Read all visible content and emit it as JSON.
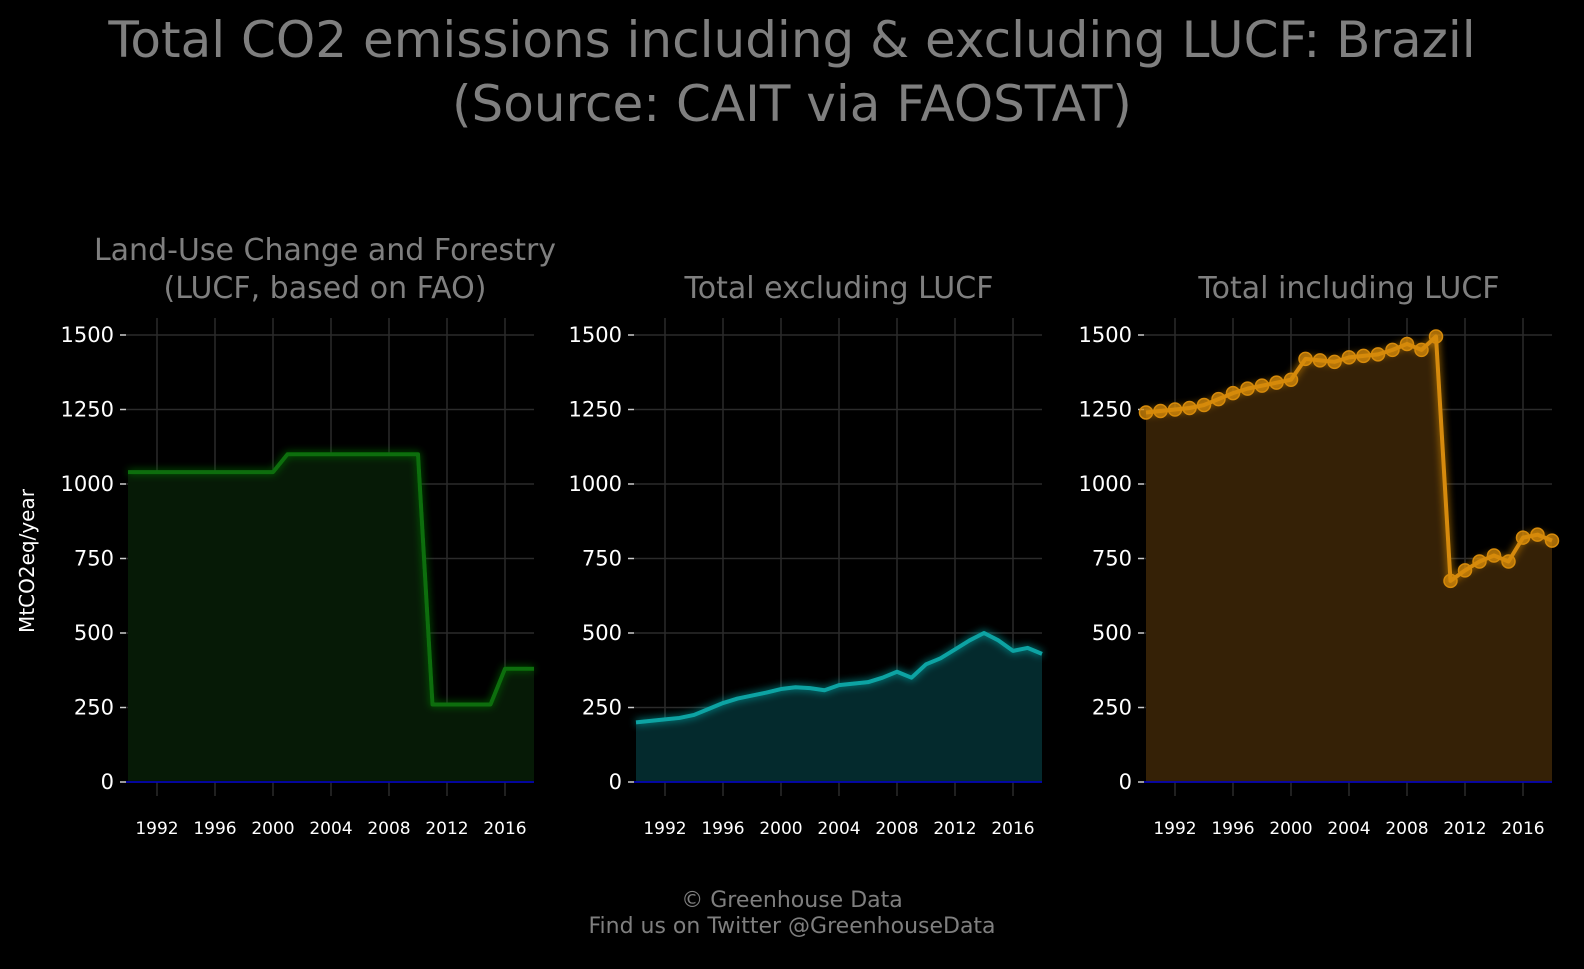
{
  "title": {
    "line1": "Total CO2 emissions including & excluding LUCF: Brazil",
    "line2": "(Source: CAIT via FAOSTAT)"
  },
  "credit": {
    "line1": "© Greenhouse Data",
    "line2": "Find us on Twitter @GreenhouseData"
  },
  "colors": {
    "background": "#000000",
    "grid": "#2b2b2b",
    "text": "#7f7f7f",
    "tick_text": "#ffffff",
    "zero_line": "#0000cc"
  },
  "chart_data": [
    {
      "type": "area",
      "title": [
        "Land-Use Change and Forestry",
        "(LUCF, based on FAO)"
      ],
      "ylabel": "MtCO2eq/year",
      "xlim": [
        1990,
        2018
      ],
      "ylim": [
        0,
        1500
      ],
      "xticks": [
        1992,
        1996,
        2000,
        2004,
        2008,
        2012,
        2016
      ],
      "yticks": [
        0,
        250,
        500,
        750,
        1000,
        1250,
        1500
      ],
      "grid": true,
      "markers": false,
      "color": "#0a6e0a",
      "fill": "#061a06",
      "x": [
        1990,
        1991,
        1992,
        1993,
        1994,
        1995,
        1996,
        1997,
        1998,
        1999,
        2000,
        2001,
        2002,
        2003,
        2004,
        2005,
        2006,
        2007,
        2008,
        2009,
        2010,
        2011,
        2012,
        2013,
        2014,
        2015,
        2016,
        2017,
        2018
      ],
      "y": [
        1040,
        1040,
        1040,
        1040,
        1040,
        1040,
        1040,
        1040,
        1040,
        1040,
        1040,
        1100,
        1100,
        1100,
        1100,
        1100,
        1100,
        1100,
        1100,
        1100,
        1100,
        260,
        260,
        260,
        260,
        260,
        380,
        380,
        380
      ]
    },
    {
      "type": "area",
      "title": [
        "Total excluding LUCF"
      ],
      "ylabel": "",
      "xlim": [
        1990,
        2018
      ],
      "ylim": [
        0,
        1500
      ],
      "xticks": [
        1992,
        1996,
        2000,
        2004,
        2008,
        2012,
        2016
      ],
      "yticks": [
        0,
        250,
        500,
        750,
        1000,
        1250,
        1500
      ],
      "grid": true,
      "markers": false,
      "color": "#0aa3a3",
      "fill": "#042a2d",
      "x": [
        1990,
        1991,
        1992,
        1993,
        1994,
        1995,
        1996,
        1997,
        1998,
        1999,
        2000,
        2001,
        2002,
        2003,
        2004,
        2005,
        2006,
        2007,
        2008,
        2009,
        2010,
        2011,
        2012,
        2013,
        2014,
        2015,
        2016,
        2017,
        2018
      ],
      "y": [
        200,
        205,
        210,
        215,
        225,
        245,
        265,
        280,
        290,
        300,
        312,
        318,
        315,
        308,
        325,
        330,
        335,
        350,
        370,
        350,
        395,
        415,
        445,
        475,
        500,
        475,
        440,
        450,
        430
      ]
    },
    {
      "type": "area",
      "title": [
        "Total including LUCF"
      ],
      "ylabel": "",
      "xlim": [
        1990,
        2018
      ],
      "ylim": [
        0,
        1500
      ],
      "xticks": [
        1992,
        1996,
        2000,
        2004,
        2008,
        2012,
        2016
      ],
      "yticks": [
        0,
        250,
        500,
        750,
        1000,
        1250,
        1500
      ],
      "grid": true,
      "markers": true,
      "color": "#d68a0a",
      "fill": "#352106",
      "x": [
        1990,
        1991,
        1992,
        1993,
        1994,
        1995,
        1996,
        1997,
        1998,
        1999,
        2000,
        2001,
        2002,
        2003,
        2004,
        2005,
        2006,
        2007,
        2008,
        2009,
        2010,
        2011,
        2012,
        2013,
        2014,
        2015,
        2016,
        2017,
        2018
      ],
      "y": [
        1240,
        1245,
        1250,
        1255,
        1265,
        1285,
        1305,
        1320,
        1330,
        1340,
        1350,
        1420,
        1415,
        1410,
        1425,
        1430,
        1435,
        1450,
        1470,
        1450,
        1495,
        675,
        710,
        740,
        760,
        740,
        820,
        830,
        810
      ]
    }
  ]
}
